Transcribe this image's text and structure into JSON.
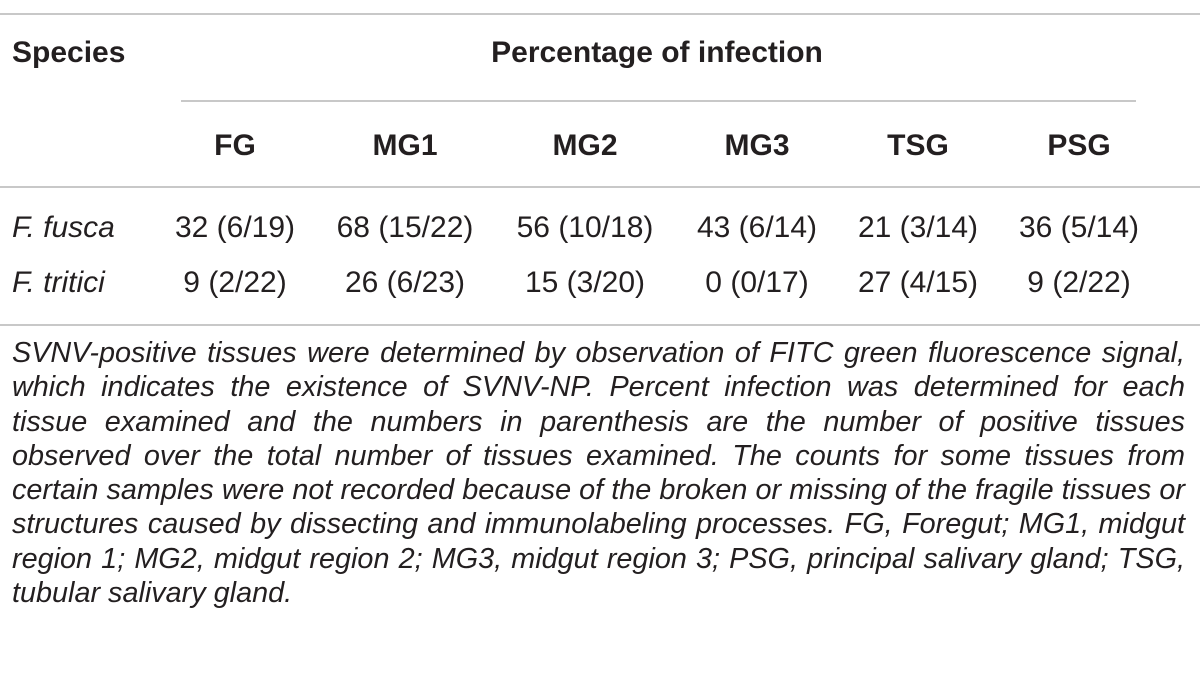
{
  "table": {
    "header": {
      "species_label": "Species",
      "group_label": "Percentage of infection",
      "columns": [
        "FG",
        "MG1",
        "MG2",
        "MG3",
        "TSG",
        "PSG"
      ]
    },
    "rows": [
      {
        "species": "F. fusca",
        "values": [
          "32 (6/19)",
          "68 (15/22)",
          "56 (10/18)",
          "43 (6/14)",
          "21 (3/14)",
          "36 (5/14)"
        ]
      },
      {
        "species": "F. tritici",
        "values": [
          "9 (2/22)",
          "26 (6/23)",
          "15 (3/20)",
          "0 (0/17)",
          "27 (4/15)",
          "9 (2/22)"
        ]
      }
    ],
    "footnote": "SVNV-positive tissues were determined by observation of FITC green fluorescence signal, which indicates the existence of SVNV-NP. Percent infection was determined for each tissue examined and the numbers in parenthesis are the number of positive tissues observed over the total number of tissues examined. The counts for some tissues from certain samples were not recorded because of the broken or missing of the fragile tissues or structures caused by dissecting and immunolabeling processes. FG, Foregut; MG1, midgut region 1; MG2, midgut region 2; MG3, midgut region 3; PSG, principal salivary gland; TSG, tubular salivary gland."
  }
}
